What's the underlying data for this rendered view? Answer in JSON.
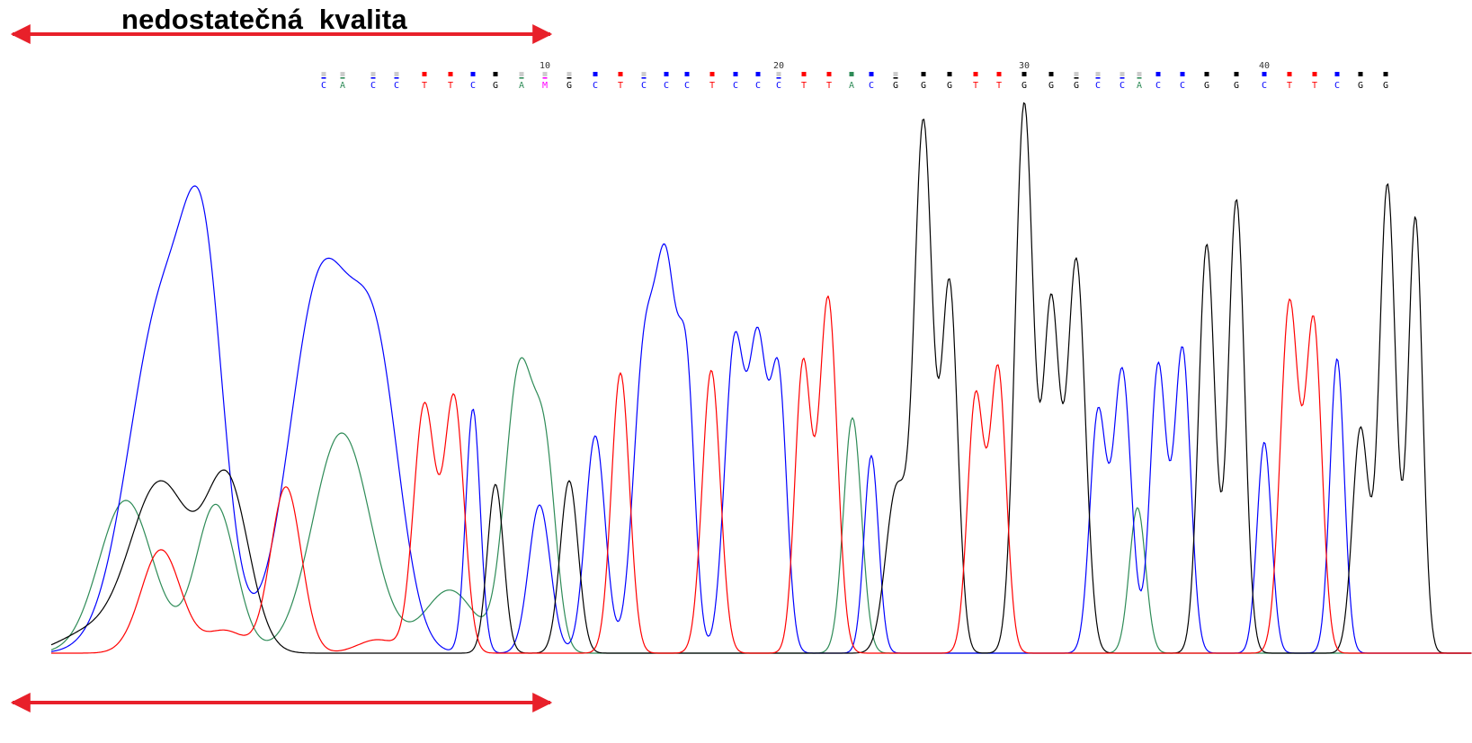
{
  "chart_data": {
    "type": "line",
    "title": "nedostatečná  kvalita",
    "xlabel": "",
    "ylabel": "",
    "xlim": [
      0,
      1580
    ],
    "ylim": [
      0,
      620
    ],
    "grid": false,
    "colors": {
      "A": "#2e8b57",
      "C": "#0000ff",
      "G": "#000000",
      "T": "#ff0000",
      "M": "#ff00ff",
      "arrow": "#e8202a"
    },
    "position_labels": [
      {
        "pos": 10,
        "x": 606
      },
      {
        "pos": 20,
        "x": 866
      },
      {
        "pos": 30,
        "x": 1139
      },
      {
        "pos": 40,
        "x": 1406
      }
    ],
    "base_calls": [
      {
        "b": "C",
        "x": 360,
        "q": 0.2
      },
      {
        "b": "A",
        "x": 381,
        "q": 0.2
      },
      {
        "b": "C",
        "x": 415,
        "q": 0.2
      },
      {
        "b": "C",
        "x": 441,
        "q": 0.3
      },
      {
        "b": "T",
        "x": 472,
        "q": 0.7
      },
      {
        "b": "T",
        "x": 501,
        "q": 0.7
      },
      {
        "b": "C",
        "x": 526,
        "q": 0.7
      },
      {
        "b": "G",
        "x": 551,
        "q": 0.7
      },
      {
        "b": "A",
        "x": 580,
        "q": 0.3
      },
      {
        "b": "M",
        "x": 606,
        "q": 0.3
      },
      {
        "b": "G",
        "x": 633,
        "q": 0.3
      },
      {
        "b": "C",
        "x": 662,
        "q": 0.8
      },
      {
        "b": "T",
        "x": 690,
        "q": 0.9
      },
      {
        "b": "C",
        "x": 716,
        "q": 0.4
      },
      {
        "b": "C",
        "x": 741,
        "q": 0.9
      },
      {
        "b": "C",
        "x": 764,
        "q": 0.9
      },
      {
        "b": "T",
        "x": 792,
        "q": 1
      },
      {
        "b": "C",
        "x": 818,
        "q": 1
      },
      {
        "b": "C",
        "x": 843,
        "q": 1
      },
      {
        "b": "C",
        "x": 866,
        "q": 0.4
      },
      {
        "b": "T",
        "x": 894,
        "q": 0.8
      },
      {
        "b": "T",
        "x": 922,
        "q": 0.8
      },
      {
        "b": "A",
        "x": 947,
        "q": 1
      },
      {
        "b": "C",
        "x": 969,
        "q": 0.9
      },
      {
        "b": "G",
        "x": 996,
        "q": 0.4
      },
      {
        "b": "G",
        "x": 1027,
        "q": 1
      },
      {
        "b": "G",
        "x": 1056,
        "q": 1
      },
      {
        "b": "T",
        "x": 1085,
        "q": 1
      },
      {
        "b": "T",
        "x": 1111,
        "q": 1
      },
      {
        "b": "G",
        "x": 1139,
        "q": 1
      },
      {
        "b": "G",
        "x": 1169,
        "q": 1
      },
      {
        "b": "G",
        "x": 1197,
        "q": 0.4
      },
      {
        "b": "C",
        "x": 1221,
        "q": 0.4
      },
      {
        "b": "C",
        "x": 1248,
        "q": 0.4
      },
      {
        "b": "A",
        "x": 1267,
        "q": 0.4
      },
      {
        "b": "C",
        "x": 1288,
        "q": 1
      },
      {
        "b": "C",
        "x": 1315,
        "q": 1
      },
      {
        "b": "G",
        "x": 1342,
        "q": 1
      },
      {
        "b": "G",
        "x": 1375,
        "q": 1
      },
      {
        "b": "C",
        "x": 1406,
        "q": 1
      },
      {
        "b": "T",
        "x": 1434,
        "q": 1
      },
      {
        "b": "T",
        "x": 1462,
        "q": 1
      },
      {
        "b": "C",
        "x": 1487,
        "q": 1
      },
      {
        "b": "G",
        "x": 1513,
        "q": 1
      },
      {
        "b": "G",
        "x": 1541,
        "q": 1
      }
    ],
    "series": [
      {
        "name": "A",
        "color": "#2e8b57",
        "peaks": [
          [
            140,
            170,
            30
          ],
          [
            240,
            165,
            22
          ],
          [
            380,
            245,
            32
          ],
          [
            500,
            70,
            28
          ],
          [
            578,
            315,
            16
          ],
          [
            607,
            190,
            12
          ],
          [
            948,
            262,
            10
          ],
          [
            1265,
            162,
            9
          ]
        ]
      },
      {
        "name": "C",
        "color": "#0000ff",
        "peaks": [
          [
            182,
            390,
            38
          ],
          [
            228,
            300,
            22
          ],
          [
            358,
            418,
            35
          ],
          [
            420,
            280,
            26
          ],
          [
            526,
            272,
            8
          ],
          [
            600,
            165,
            12
          ],
          [
            662,
            242,
            11
          ],
          [
            716,
            315,
            12
          ],
          [
            741,
            405,
            12
          ],
          [
            764,
            278,
            9
          ],
          [
            817,
            345,
            11
          ],
          [
            843,
            330,
            10
          ],
          [
            866,
            300,
            9
          ],
          [
            969,
            220,
            8
          ],
          [
            1221,
            265,
            9
          ],
          [
            1248,
            315,
            10
          ],
          [
            1288,
            320,
            9
          ],
          [
            1315,
            338,
            9
          ],
          [
            1406,
            235,
            8
          ],
          [
            1487,
            328,
            8
          ]
        ]
      },
      {
        "name": "G",
        "color": "#000000",
        "peaks": [
          [
            95,
            20,
            30
          ],
          [
            178,
            190,
            34
          ],
          [
            253,
            185,
            24
          ],
          [
            551,
            188,
            9
          ],
          [
            633,
            192,
            10
          ],
          [
            997,
            182,
            12
          ],
          [
            1027,
            585,
            10
          ],
          [
            1056,
            408,
            9
          ],
          [
            1139,
            612,
            10
          ],
          [
            1169,
            385,
            9
          ],
          [
            1197,
            437,
            10
          ],
          [
            1342,
            455,
            9
          ],
          [
            1375,
            505,
            9
          ],
          [
            1513,
            250,
            9
          ],
          [
            1543,
            522,
            9
          ],
          [
            1574,
            485,
            8
          ]
        ]
      },
      {
        "name": "T",
        "color": "#ff0000",
        "peaks": [
          [
            179,
            115,
            22
          ],
          [
            250,
            25,
            22
          ],
          [
            318,
            185,
            17
          ],
          [
            420,
            15,
            22
          ],
          [
            472,
            275,
            12
          ],
          [
            505,
            282,
            11
          ],
          [
            690,
            312,
            10
          ],
          [
            791,
            315,
            10
          ],
          [
            893,
            320,
            9
          ],
          [
            921,
            395,
            10
          ],
          [
            1085,
            285,
            9
          ],
          [
            1110,
            315,
            9
          ],
          [
            1434,
            390,
            10
          ],
          [
            1461,
            365,
            9
          ]
        ]
      }
    ]
  }
}
